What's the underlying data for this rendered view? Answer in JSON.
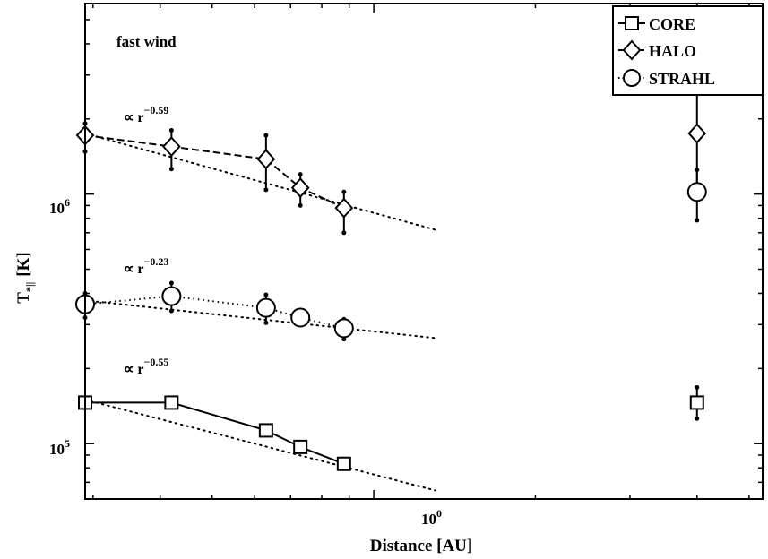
{
  "chart_data": {
    "type": "line",
    "xscale": "log",
    "yscale": "log",
    "xlabel": "Distance [AU]",
    "ylabel_main": "T",
    "ylabel_sub": "*||",
    "ylabel_unit": "[K]",
    "xlim": [
      0.29,
      5.3
    ],
    "ylim": [
      60000,
      5800000
    ],
    "x_tick_label_base": "10",
    "x_tick_label_exp": "0",
    "y_tick_labels": [
      {
        "base": "10",
        "exp": "5",
        "value": 100000
      },
      {
        "base": "10",
        "exp": "6",
        "value": 1000000
      }
    ],
    "annotation": "fast wind",
    "fit_labels": [
      {
        "series": "HALO",
        "prefix": "∝ r",
        "exponent": "−0.59"
      },
      {
        "series": "STRAHL",
        "prefix": "∝ r",
        "exponent": "−0.23"
      },
      {
        "series": "CORE",
        "prefix": "∝ r",
        "exponent": "−0.55"
      }
    ],
    "legend": {
      "position": "top-right"
    },
    "series": [
      {
        "name": "CORE",
        "marker": "square",
        "line": "solid",
        "x": [
          0.29,
          0.42,
          0.63,
          0.73,
          0.88
        ],
        "y": [
          146000,
          146000,
          113000,
          97000,
          83000
        ],
        "err": [
          4000,
          4000,
          4000,
          3000,
          3000
        ],
        "fit": {
          "exponent": -0.55,
          "x": [
            0.29,
            1.3
          ],
          "y": [
            150000,
            65000
          ]
        },
        "outlier": {
          "x": 4.0,
          "y": 146000,
          "err_low": 126000,
          "err_high": 168000
        }
      },
      {
        "name": "HALO",
        "marker": "diamond",
        "line": "dashed",
        "x": [
          0.29,
          0.42,
          0.63,
          0.73,
          0.88
        ],
        "y": [
          1720000,
          1550000,
          1380000,
          1060000,
          880000
        ],
        "err_low": [
          1480000,
          1260000,
          1040000,
          900000,
          700000
        ],
        "err_high": [
          1920000,
          1800000,
          1720000,
          1200000,
          1020000
        ],
        "fit": {
          "exponent": -0.59,
          "x": [
            0.29,
            1.3
          ],
          "y": [
            1750000,
            720000
          ]
        },
        "outlier": {
          "x": 4.0,
          "y": 1750000,
          "err_low": 1000000,
          "err_high": 2650000
        }
      },
      {
        "name": "STRAHL",
        "marker": "circle",
        "line": "dotted",
        "x": [
          0.29,
          0.42,
          0.63,
          0.73,
          0.88
        ],
        "y": [
          362000,
          390000,
          350000,
          320000,
          290000
        ],
        "err_low": [
          320000,
          340000,
          305000,
          300000,
          262000
        ],
        "err_high": [
          400000,
          440000,
          395000,
          340000,
          315000
        ],
        "fit": {
          "exponent": -0.23,
          "x": [
            0.29,
            1.3
          ],
          "y": [
            375000,
            265000
          ]
        },
        "outlier": {
          "x": 4.0,
          "y": 1020000,
          "err_low": 785000,
          "err_high": 1250000
        }
      }
    ]
  }
}
